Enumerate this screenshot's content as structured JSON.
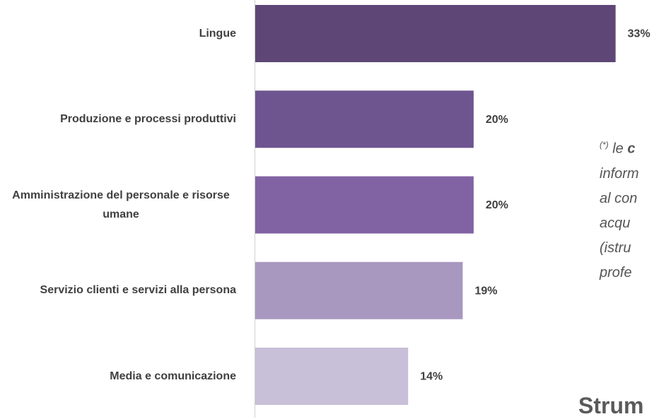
{
  "chart_data": {
    "type": "bar",
    "orientation": "horizontal",
    "categories": [
      "Lingue",
      "Produzione e processi produttivi",
      "Amministrazione del personale e risorse umane",
      "Servizio clienti e servizi alla persona",
      "Media e comunicazione"
    ],
    "values": [
      33,
      20,
      20,
      19,
      14
    ],
    "value_labels": [
      "33%",
      "20%",
      "20%",
      "19%",
      "14%"
    ],
    "colors": [
      "#5e4776",
      "#6f5590",
      "#8163a3",
      "#a898c0",
      "#c8bfd8"
    ],
    "xlim": [
      0,
      36
    ]
  },
  "note": {
    "marker": "(*)",
    "first": "le",
    "bold": "c",
    "lines": [
      "inform",
      "al con",
      "acqu",
      "(istru",
      "profe"
    ]
  },
  "heading": "Strum"
}
